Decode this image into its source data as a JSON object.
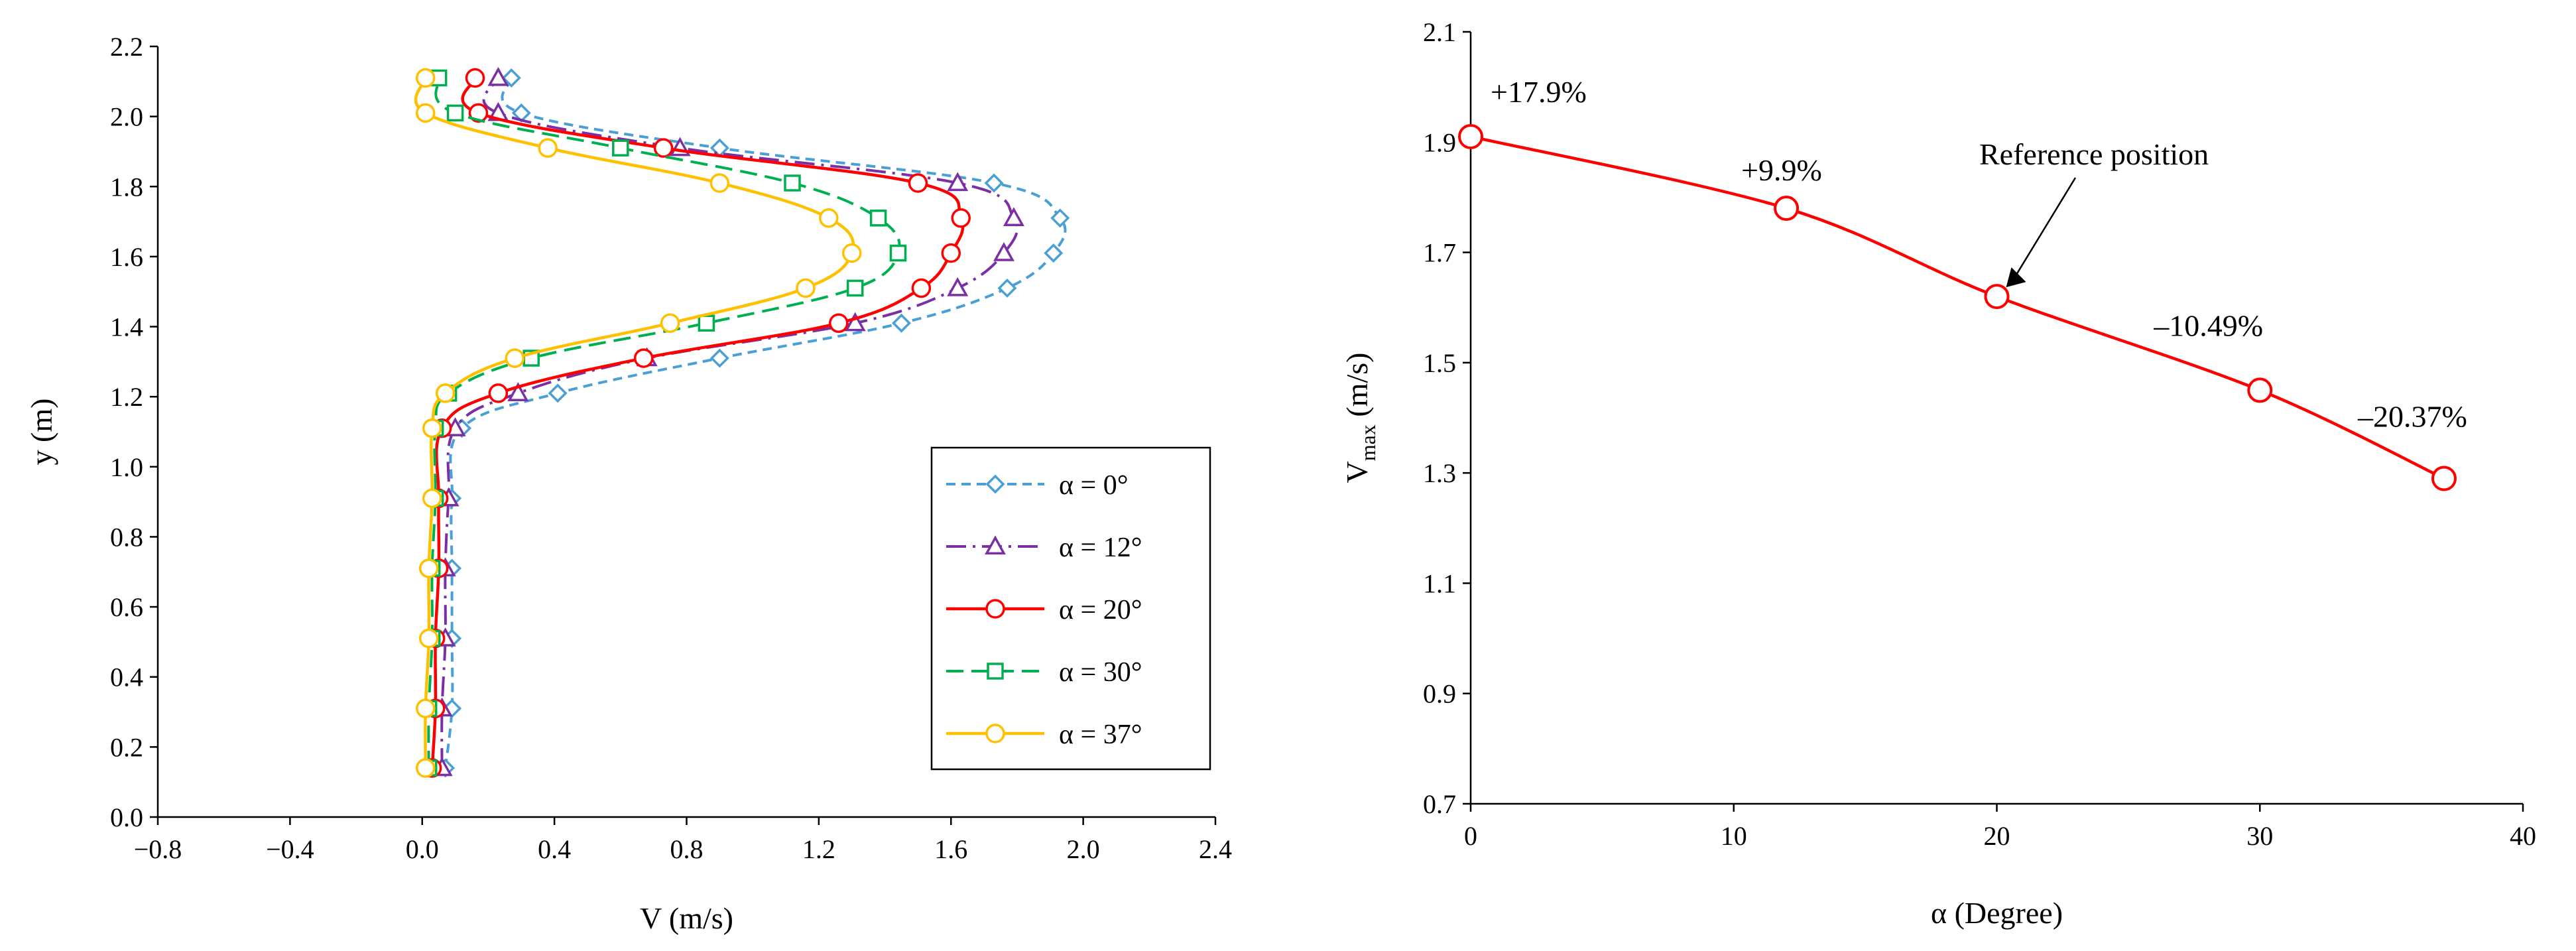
{
  "chart_data": [
    {
      "type": "line",
      "title": "",
      "xlabel": "V (m/s)",
      "ylabel": "y (m)",
      "xlim": [
        -0.8,
        2.4
      ],
      "ylim": [
        0.0,
        2.2
      ],
      "xticks": [
        "−0.8",
        "−0.4",
        "0.0",
        "0.4",
        "0.8",
        "1.2",
        "1.6",
        "2.0",
        "2.4"
      ],
      "yticks": [
        "0.0",
        "0.2",
        "0.4",
        "0.6",
        "0.8",
        "1.0",
        "1.2",
        "1.4",
        "1.6",
        "1.8",
        "2.0",
        "2.2"
      ],
      "grid": false,
      "legend": "right",
      "series": [
        {
          "name": "α = 0°",
          "color": "#4a9fd5",
          "marker": "diamond",
          "dash": "short-dash",
          "points": [
            [
              0.07,
              0.14
            ],
            [
              0.09,
              0.31
            ],
            [
              0.09,
              0.51
            ],
            [
              0.09,
              0.71
            ],
            [
              0.09,
              0.91
            ],
            [
              0.12,
              1.11
            ],
            [
              0.41,
              1.21
            ],
            [
              0.9,
              1.31
            ],
            [
              1.45,
              1.41
            ],
            [
              1.77,
              1.51
            ],
            [
              1.91,
              1.61
            ],
            [
              1.93,
              1.71
            ],
            [
              1.73,
              1.81
            ],
            [
              0.9,
              1.91
            ],
            [
              0.3,
              2.01
            ],
            [
              0.27,
              2.11
            ]
          ]
        },
        {
          "name": "α = 12°",
          "color": "#7b2fa4",
          "marker": "triangle",
          "dash": "dash-dot",
          "points": [
            [
              0.06,
              0.14
            ],
            [
              0.06,
              0.31
            ],
            [
              0.07,
              0.51
            ],
            [
              0.07,
              0.71
            ],
            [
              0.08,
              0.91
            ],
            [
              0.1,
              1.11
            ],
            [
              0.29,
              1.21
            ],
            [
              0.68,
              1.31
            ],
            [
              1.31,
              1.41
            ],
            [
              1.62,
              1.51
            ],
            [
              1.76,
              1.61
            ],
            [
              1.79,
              1.71
            ],
            [
              1.62,
              1.81
            ],
            [
              0.78,
              1.91
            ],
            [
              0.23,
              2.01
            ],
            [
              0.23,
              2.11
            ]
          ]
        },
        {
          "name": "α = 20°",
          "color": "#ff0000",
          "marker": "circle",
          "dash": "solid",
          "points": [
            [
              0.03,
              0.14
            ],
            [
              0.04,
              0.31
            ],
            [
              0.04,
              0.51
            ],
            [
              0.05,
              0.71
            ],
            [
              0.05,
              0.91
            ],
            [
              0.06,
              1.11
            ],
            [
              0.23,
              1.21
            ],
            [
              0.67,
              1.31
            ],
            [
              1.26,
              1.41
            ],
            [
              1.51,
              1.51
            ],
            [
              1.6,
              1.61
            ],
            [
              1.63,
              1.71
            ],
            [
              1.5,
              1.81
            ],
            [
              0.73,
              1.91
            ],
            [
              0.17,
              2.01
            ],
            [
              0.16,
              2.11
            ]
          ]
        },
        {
          "name": "α = 30°",
          "color": "#00b050",
          "marker": "square",
          "dash": "long-dash",
          "points": [
            [
              0.02,
              0.14
            ],
            [
              0.02,
              0.31
            ],
            [
              0.03,
              0.51
            ],
            [
              0.03,
              0.71
            ],
            [
              0.04,
              0.91
            ],
            [
              0.04,
              1.11
            ],
            [
              0.08,
              1.21
            ],
            [
              0.33,
              1.31
            ],
            [
              0.86,
              1.41
            ],
            [
              1.31,
              1.51
            ],
            [
              1.44,
              1.61
            ],
            [
              1.38,
              1.71
            ],
            [
              1.12,
              1.81
            ],
            [
              0.6,
              1.91
            ],
            [
              0.1,
              2.01
            ],
            [
              0.05,
              2.11
            ]
          ]
        },
        {
          "name": "α = 37°",
          "color": "#ffc000",
          "marker": "circle",
          "dash": "solid",
          "points": [
            [
              0.01,
              0.14
            ],
            [
              0.01,
              0.31
            ],
            [
              0.02,
              0.51
            ],
            [
              0.02,
              0.71
            ],
            [
              0.03,
              0.91
            ],
            [
              0.03,
              1.11
            ],
            [
              0.07,
              1.21
            ],
            [
              0.28,
              1.31
            ],
            [
              0.75,
              1.41
            ],
            [
              1.16,
              1.51
            ],
            [
              1.3,
              1.61
            ],
            [
              1.23,
              1.71
            ],
            [
              0.9,
              1.81
            ],
            [
              0.38,
              1.91
            ],
            [
              0.01,
              2.01
            ],
            [
              0.01,
              2.11
            ]
          ]
        }
      ]
    },
    {
      "type": "line",
      "title": "",
      "xlabel": "α (Degree)",
      "ylabel_main": "V",
      "ylabel_sub": "max",
      "ylabel_unit": " (m/s)",
      "xlim": [
        0,
        40
      ],
      "ylim": [
        0.7,
        2.1
      ],
      "xticks": [
        "0",
        "10",
        "20",
        "30",
        "40"
      ],
      "yticks": [
        "0.7",
        "0.9",
        "1.1",
        "1.3",
        "1.5",
        "1.7",
        "1.9",
        "2.1"
      ],
      "grid": false,
      "series": [
        {
          "name": "Vmax",
          "color": "#ff0000",
          "marker": "circle",
          "x": [
            0,
            12,
            20,
            30,
            37
          ],
          "y": [
            1.91,
            1.78,
            1.62,
            1.45,
            1.29
          ]
        }
      ],
      "point_labels": [
        "+17.9%",
        "+9.9%",
        "",
        "–10.49%",
        "–20.37%"
      ],
      "annotation": {
        "text": "Reference position",
        "target_x": 20,
        "target_y": 1.62
      }
    }
  ]
}
